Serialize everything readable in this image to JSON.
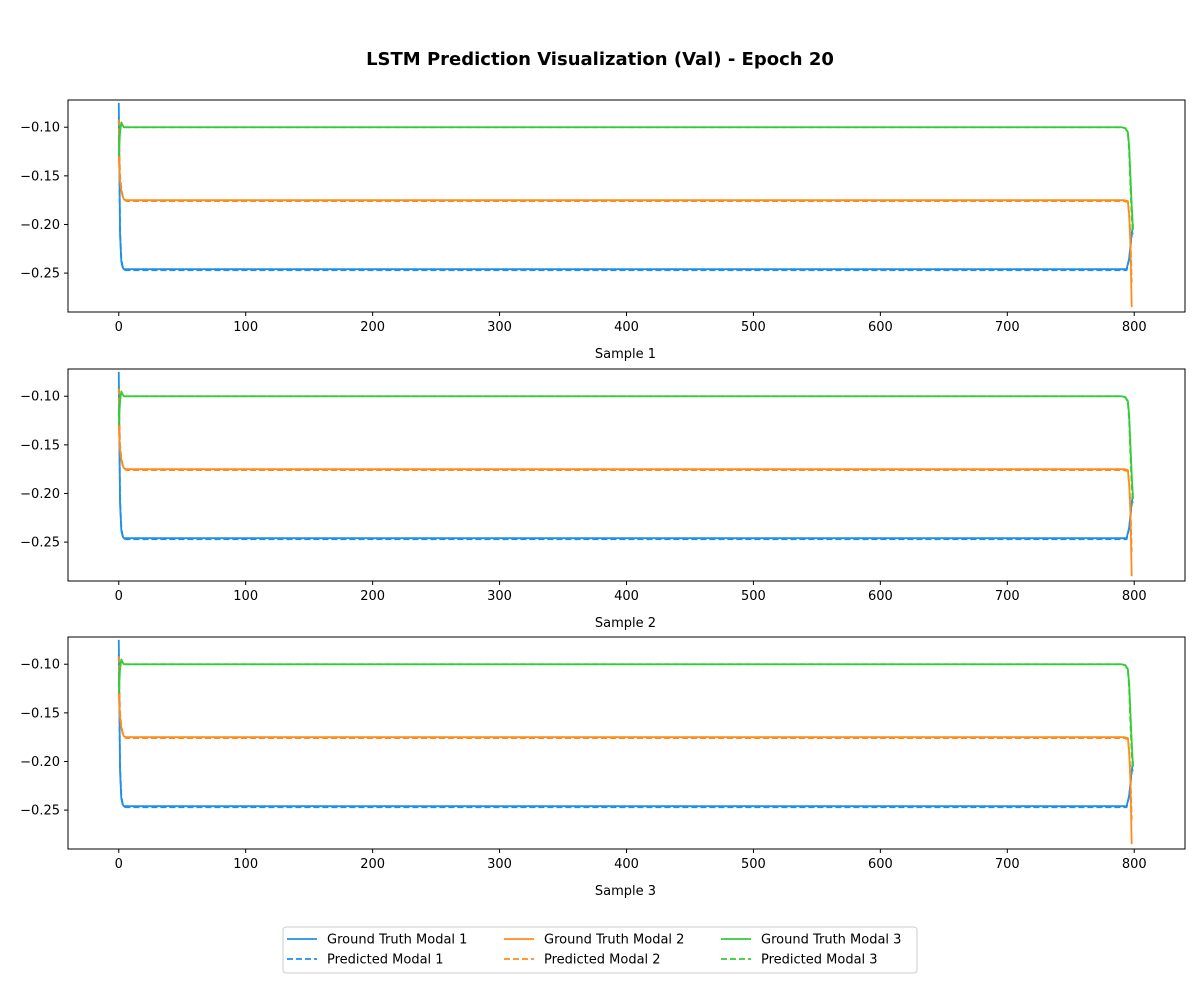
{
  "figure_title": "LSTM Prediction Visualization (Val) - Epoch 20",
  "colors": {
    "modal_1": "#1f8fe8",
    "modal_2": "#ff8c1a",
    "modal_3": "#33cc33"
  },
  "chart_data": [
    {
      "type": "line",
      "title": "",
      "xlabel": "Sample 1",
      "ylabel": "",
      "xlim": [
        -40,
        840
      ],
      "ylim": [
        -0.29,
        -0.072
      ],
      "xticks": [
        0,
        100,
        200,
        300,
        400,
        500,
        600,
        700,
        800
      ],
      "yticks": [
        -0.1,
        -0.15,
        -0.2,
        -0.25
      ],
      "ytick_labels": [
        "−0.10",
        "−0.15",
        "−0.20",
        "−0.25"
      ],
      "grid": false,
      "series": [
        {
          "name": "Ground Truth Modal 1",
          "color": "#1f8fe8",
          "style": "solid",
          "x": [
            0,
            1,
            2,
            3,
            4,
            5,
            8,
            20,
            794,
            796,
            797,
            798,
            799
          ],
          "y": [
            -0.075,
            -0.21,
            -0.238,
            -0.244,
            -0.246,
            -0.246,
            -0.246,
            -0.246,
            -0.246,
            -0.235,
            -0.222,
            -0.21,
            -0.2
          ]
        },
        {
          "name": "Predicted Modal 1",
          "color": "#1f8fe8",
          "style": "dashed",
          "x": [
            0,
            1,
            2,
            3,
            4,
            5,
            8,
            20,
            794,
            796,
            797,
            798,
            799
          ],
          "y": [
            -0.09,
            -0.205,
            -0.235,
            -0.243,
            -0.246,
            -0.247,
            -0.247,
            -0.247,
            -0.247,
            -0.236,
            -0.224,
            -0.212,
            -0.203
          ]
        },
        {
          "name": "Ground Truth Modal 2",
          "color": "#ff8c1a",
          "style": "solid",
          "x": [
            0,
            1,
            2,
            3,
            4,
            6,
            20,
            792,
            795,
            796,
            797,
            798
          ],
          "y": [
            -0.13,
            -0.155,
            -0.165,
            -0.171,
            -0.174,
            -0.175,
            -0.175,
            -0.175,
            -0.176,
            -0.19,
            -0.22,
            -0.285
          ]
        },
        {
          "name": "Predicted Modal 2",
          "color": "#ff8c1a",
          "style": "dashed",
          "x": [
            0,
            1,
            2,
            3,
            4,
            6,
            20,
            792,
            795,
            796,
            797,
            798
          ],
          "y": [
            -0.092,
            -0.15,
            -0.163,
            -0.17,
            -0.174,
            -0.176,
            -0.176,
            -0.176,
            -0.177,
            -0.19,
            -0.21,
            -0.26
          ]
        },
        {
          "name": "Ground Truth Modal 3",
          "color": "#33cc33",
          "style": "solid",
          "x": [
            0,
            1,
            2,
            3,
            4,
            6,
            20,
            790,
            793,
            795,
            796,
            797,
            798,
            799
          ],
          "y": [
            -0.13,
            -0.105,
            -0.095,
            -0.098,
            -0.1,
            -0.1,
            -0.1,
            -0.1,
            -0.101,
            -0.105,
            -0.12,
            -0.15,
            -0.18,
            -0.205
          ]
        },
        {
          "name": "Predicted Modal 3",
          "color": "#33cc33",
          "style": "dashed",
          "x": [
            0,
            1,
            2,
            3,
            4,
            6,
            20,
            790,
            793,
            795,
            796,
            797,
            798,
            799
          ],
          "y": [
            -0.12,
            -0.1,
            -0.097,
            -0.099,
            -0.1,
            -0.1,
            -0.1,
            -0.1,
            -0.101,
            -0.106,
            -0.125,
            -0.16,
            -0.19,
            -0.21
          ]
        }
      ]
    },
    {
      "type": "line",
      "title": "",
      "xlabel": "Sample 2",
      "ylabel": "",
      "xlim": [
        -40,
        840
      ],
      "ylim": [
        -0.29,
        -0.072
      ],
      "xticks": [
        0,
        100,
        200,
        300,
        400,
        500,
        600,
        700,
        800
      ],
      "yticks": [
        -0.1,
        -0.15,
        -0.2,
        -0.25
      ],
      "ytick_labels": [
        "−0.10",
        "−0.15",
        "−0.20",
        "−0.25"
      ],
      "grid": false,
      "series": [
        {
          "name": "Ground Truth Modal 1",
          "color": "#1f8fe8",
          "style": "solid",
          "x": [
            0,
            1,
            2,
            3,
            4,
            5,
            8,
            20,
            794,
            796,
            797,
            798,
            799
          ],
          "y": [
            -0.075,
            -0.21,
            -0.238,
            -0.244,
            -0.246,
            -0.246,
            -0.246,
            -0.246,
            -0.246,
            -0.235,
            -0.222,
            -0.21,
            -0.2
          ]
        },
        {
          "name": "Predicted Modal 1",
          "color": "#1f8fe8",
          "style": "dashed",
          "x": [
            0,
            1,
            2,
            3,
            4,
            5,
            8,
            20,
            794,
            796,
            797,
            798,
            799
          ],
          "y": [
            -0.09,
            -0.205,
            -0.235,
            -0.243,
            -0.246,
            -0.247,
            -0.247,
            -0.247,
            -0.247,
            -0.236,
            -0.224,
            -0.212,
            -0.203
          ]
        },
        {
          "name": "Ground Truth Modal 2",
          "color": "#ff8c1a",
          "style": "solid",
          "x": [
            0,
            1,
            2,
            3,
            4,
            6,
            20,
            792,
            795,
            796,
            797,
            798
          ],
          "y": [
            -0.13,
            -0.155,
            -0.165,
            -0.171,
            -0.174,
            -0.175,
            -0.175,
            -0.175,
            -0.176,
            -0.19,
            -0.22,
            -0.285
          ]
        },
        {
          "name": "Predicted Modal 2",
          "color": "#ff8c1a",
          "style": "dashed",
          "x": [
            0,
            1,
            2,
            3,
            4,
            6,
            20,
            792,
            795,
            796,
            797,
            798
          ],
          "y": [
            -0.092,
            -0.15,
            -0.163,
            -0.17,
            -0.174,
            -0.176,
            -0.176,
            -0.176,
            -0.177,
            -0.19,
            -0.21,
            -0.26
          ]
        },
        {
          "name": "Ground Truth Modal 3",
          "color": "#33cc33",
          "style": "solid",
          "x": [
            0,
            1,
            2,
            3,
            4,
            6,
            20,
            790,
            793,
            795,
            796,
            797,
            798,
            799
          ],
          "y": [
            -0.13,
            -0.105,
            -0.095,
            -0.098,
            -0.1,
            -0.1,
            -0.1,
            -0.1,
            -0.101,
            -0.105,
            -0.12,
            -0.15,
            -0.18,
            -0.205
          ]
        },
        {
          "name": "Predicted Modal 3",
          "color": "#33cc33",
          "style": "dashed",
          "x": [
            0,
            1,
            2,
            3,
            4,
            6,
            20,
            790,
            793,
            795,
            796,
            797,
            798,
            799
          ],
          "y": [
            -0.12,
            -0.1,
            -0.097,
            -0.099,
            -0.1,
            -0.1,
            -0.1,
            -0.1,
            -0.101,
            -0.106,
            -0.125,
            -0.16,
            -0.19,
            -0.21
          ]
        }
      ]
    },
    {
      "type": "line",
      "title": "",
      "xlabel": "Sample 3",
      "ylabel": "",
      "xlim": [
        -40,
        840
      ],
      "ylim": [
        -0.29,
        -0.072
      ],
      "xticks": [
        0,
        100,
        200,
        300,
        400,
        500,
        600,
        700,
        800
      ],
      "yticks": [
        -0.1,
        -0.15,
        -0.2,
        -0.25
      ],
      "ytick_labels": [
        "−0.10",
        "−0.15",
        "−0.20",
        "−0.25"
      ],
      "grid": false,
      "series": [
        {
          "name": "Ground Truth Modal 1",
          "color": "#1f8fe8",
          "style": "solid",
          "x": [
            0,
            1,
            2,
            3,
            4,
            5,
            8,
            20,
            794,
            796,
            797,
            798,
            799
          ],
          "y": [
            -0.075,
            -0.21,
            -0.238,
            -0.244,
            -0.246,
            -0.246,
            -0.246,
            -0.246,
            -0.246,
            -0.235,
            -0.222,
            -0.21,
            -0.2
          ]
        },
        {
          "name": "Predicted Modal 1",
          "color": "#1f8fe8",
          "style": "dashed",
          "x": [
            0,
            1,
            2,
            3,
            4,
            5,
            8,
            20,
            794,
            796,
            797,
            798,
            799
          ],
          "y": [
            -0.09,
            -0.205,
            -0.235,
            -0.243,
            -0.246,
            -0.247,
            -0.247,
            -0.247,
            -0.247,
            -0.236,
            -0.224,
            -0.212,
            -0.203
          ]
        },
        {
          "name": "Ground Truth Modal 2",
          "color": "#ff8c1a",
          "style": "solid",
          "x": [
            0,
            1,
            2,
            3,
            4,
            6,
            20,
            792,
            795,
            796,
            797,
            798
          ],
          "y": [
            -0.13,
            -0.155,
            -0.165,
            -0.171,
            -0.174,
            -0.175,
            -0.175,
            -0.175,
            -0.176,
            -0.19,
            -0.22,
            -0.285
          ]
        },
        {
          "name": "Predicted Modal 2",
          "color": "#ff8c1a",
          "style": "dashed",
          "x": [
            0,
            1,
            2,
            3,
            4,
            6,
            20,
            792,
            795,
            796,
            797,
            798
          ],
          "y": [
            -0.092,
            -0.15,
            -0.163,
            -0.17,
            -0.174,
            -0.176,
            -0.176,
            -0.176,
            -0.177,
            -0.19,
            -0.21,
            -0.26
          ]
        },
        {
          "name": "Ground Truth Modal 3",
          "color": "#33cc33",
          "style": "solid",
          "x": [
            0,
            1,
            2,
            3,
            4,
            6,
            20,
            790,
            793,
            795,
            796,
            797,
            798,
            799
          ],
          "y": [
            -0.13,
            -0.105,
            -0.095,
            -0.098,
            -0.1,
            -0.1,
            -0.1,
            -0.1,
            -0.101,
            -0.105,
            -0.12,
            -0.15,
            -0.18,
            -0.205
          ]
        },
        {
          "name": "Predicted Modal 3",
          "color": "#33cc33",
          "style": "dashed",
          "x": [
            0,
            1,
            2,
            3,
            4,
            6,
            20,
            790,
            793,
            795,
            796,
            797,
            798,
            799
          ],
          "y": [
            -0.12,
            -0.1,
            -0.097,
            -0.099,
            -0.1,
            -0.1,
            -0.1,
            -0.1,
            -0.101,
            -0.106,
            -0.125,
            -0.16,
            -0.19,
            -0.21
          ]
        }
      ]
    }
  ],
  "legend": {
    "placement": "bottom-center",
    "columns": 3,
    "entries": [
      {
        "label": "Ground Truth Modal 1",
        "color": "#1f8fe8",
        "style": "solid"
      },
      {
        "label": "Predicted Modal 1",
        "color": "#1f8fe8",
        "style": "dashed"
      },
      {
        "label": "Ground Truth Modal 2",
        "color": "#ff8c1a",
        "style": "solid"
      },
      {
        "label": "Predicted Modal 2",
        "color": "#ff8c1a",
        "style": "dashed"
      },
      {
        "label": "Ground Truth Modal 3",
        "color": "#33cc33",
        "style": "solid"
      },
      {
        "label": "Predicted Modal 3",
        "color": "#33cc33",
        "style": "dashed"
      }
    ]
  }
}
